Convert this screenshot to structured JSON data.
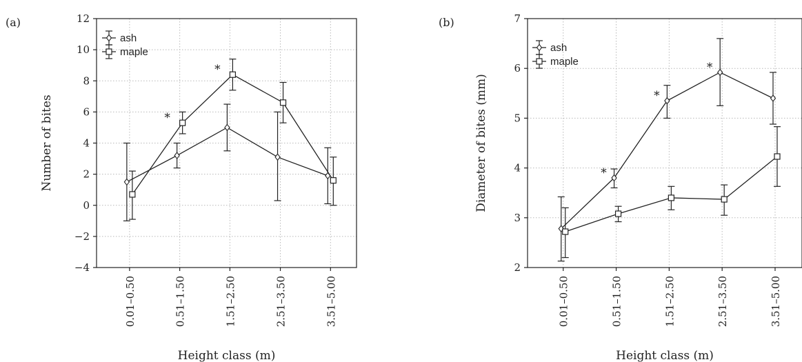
{
  "chart_data": [
    {
      "panel_label": "(a)",
      "type": "line",
      "categories": [
        "0.01–0.50",
        "0.51–1.50",
        "1.51–2.50",
        "2.51–3.50",
        "3.51–5.00"
      ],
      "xlabel": "Height class (m)",
      "ylabel": "Number of bites",
      "ylim": [
        -4,
        12
      ],
      "yticks": [
        12,
        10,
        8,
        6,
        4,
        2,
        0,
        -2,
        -4
      ],
      "ytick_labels": [
        "12",
        "10",
        "8",
        "6",
        "4",
        "2",
        "0",
        "−2",
        "−4"
      ],
      "grid": true,
      "legend_position": "top-left",
      "series": [
        {
          "name": "ash",
          "marker": "diamond",
          "values": [
            1.5,
            3.2,
            5.0,
            3.1,
            1.9
          ],
          "err_low": [
            -1.0,
            2.4,
            3.5,
            0.3,
            0.1
          ],
          "err_high": [
            4.0,
            4.0,
            6.5,
            6.0,
            3.7
          ]
        },
        {
          "name": "maple",
          "marker": "square",
          "values": [
            0.7,
            5.3,
            8.4,
            6.6,
            1.6
          ],
          "err_low": [
            -0.9,
            4.6,
            7.4,
            5.3,
            0.0
          ],
          "err_high": [
            2.2,
            6.0,
            9.4,
            7.9,
            3.1
          ]
        }
      ],
      "annotations": [
        {
          "text": "*",
          "category_index": 1,
          "y": 5.3
        },
        {
          "text": "*",
          "category_index": 2,
          "y": 8.4
        }
      ]
    },
    {
      "panel_label": "(b)",
      "type": "line",
      "categories": [
        "0.01–0.50",
        "0.51–1.50",
        "1.51–2.50",
        "2.51–3.50",
        "3.51–5.00"
      ],
      "xlabel": "Height class (m)",
      "ylabel": "Diameter of bites (mm)",
      "ylim": [
        2,
        7
      ],
      "yticks": [
        7,
        6,
        5,
        4,
        3,
        2
      ],
      "ytick_labels": [
        "7",
        "6",
        "5",
        "4",
        "3",
        "2"
      ],
      "grid": true,
      "legend_position": "top-left",
      "series": [
        {
          "name": "ash",
          "marker": "diamond",
          "values": [
            2.78,
            3.8,
            5.35,
            5.92,
            5.4
          ],
          "err_low": [
            2.13,
            3.6,
            5.0,
            5.25,
            4.88
          ],
          "err_high": [
            3.42,
            3.98,
            5.66,
            6.6,
            5.92
          ]
        },
        {
          "name": "maple",
          "marker": "square",
          "values": [
            2.72,
            3.08,
            3.4,
            3.37,
            4.23
          ],
          "err_low": [
            2.2,
            2.92,
            3.16,
            3.05,
            3.63
          ],
          "err_high": [
            3.2,
            3.23,
            3.63,
            3.66,
            4.83
          ]
        }
      ],
      "annotations": [
        {
          "text": "*",
          "category_index": 1,
          "y": 3.8
        },
        {
          "text": "*",
          "category_index": 2,
          "y": 5.35
        },
        {
          "text": "*",
          "category_index": 3,
          "y": 5.92
        }
      ]
    }
  ]
}
